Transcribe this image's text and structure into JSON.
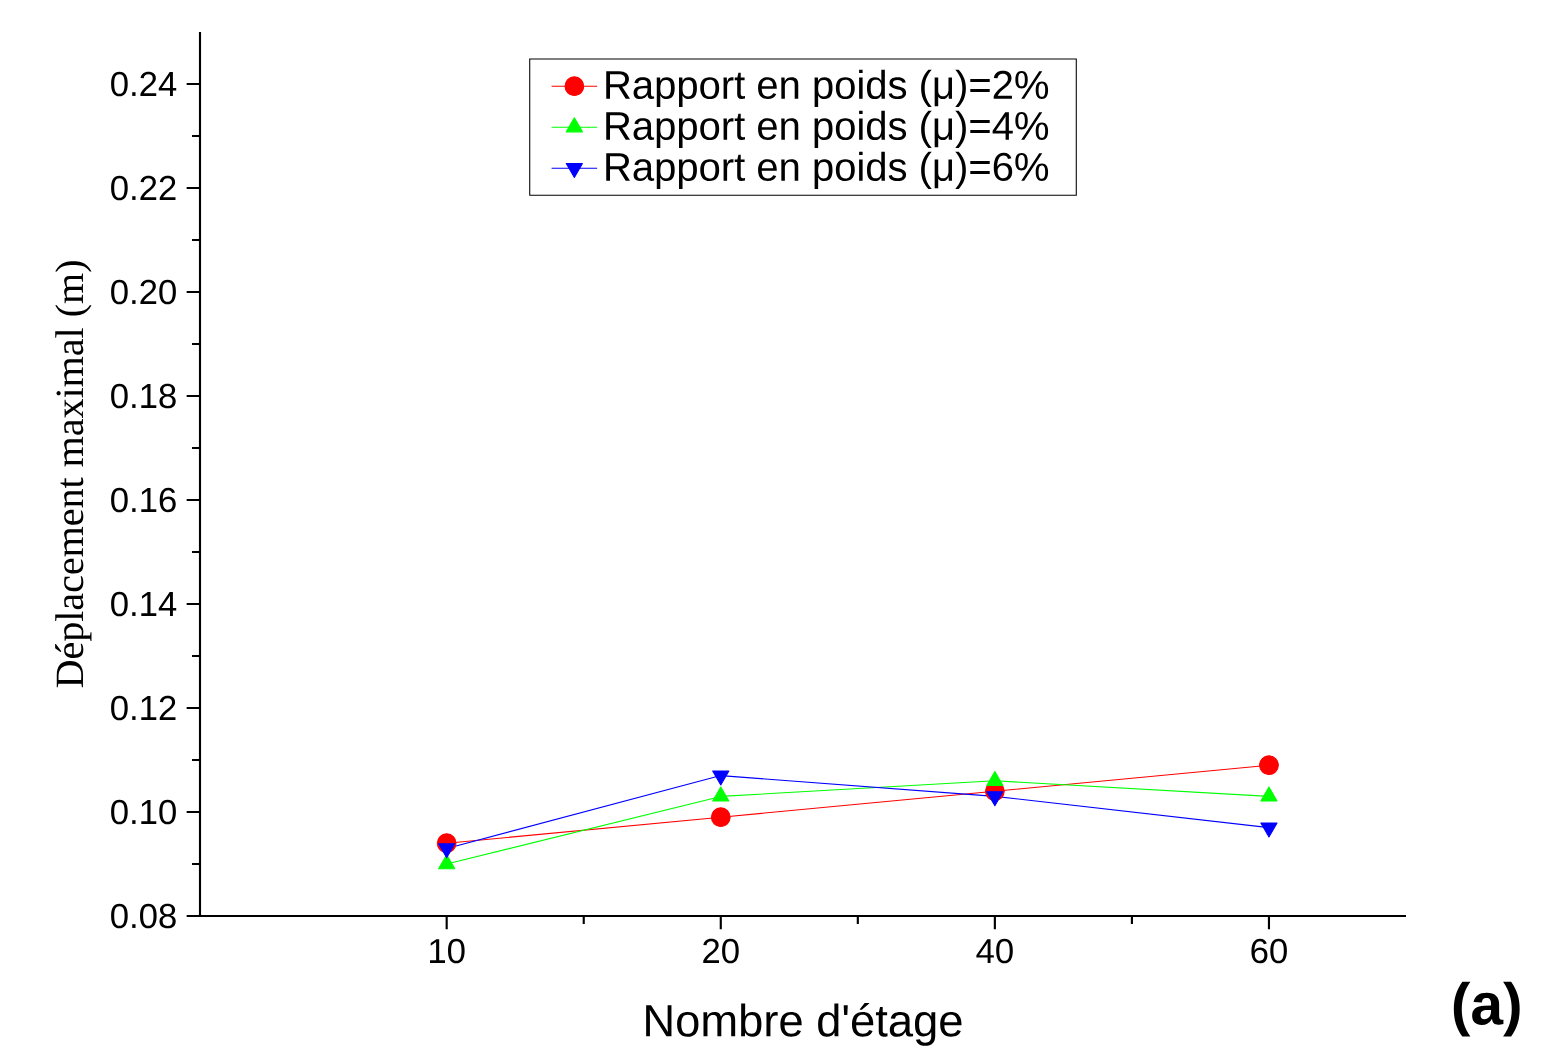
{
  "chart_data": {
    "type": "line",
    "xlabel": "Nombre d'étage",
    "ylabel": "Déplacement maximal (m)",
    "categories": [
      "10",
      "20",
      "40",
      "60"
    ],
    "series": [
      {
        "name": "Rapport en poids (μ)=2%",
        "color": "#ff0000",
        "marker": "circle",
        "values": [
          0.094,
          0.099,
          0.104,
          0.109
        ]
      },
      {
        "name": "Rapport en poids (μ)=4%",
        "color": "#00ff00",
        "marker": "triangle",
        "values": [
          0.09,
          0.103,
          0.106,
          0.103
        ]
      },
      {
        "name": "Rapport en poids (μ)=6%",
        "color": "#0000ff",
        "marker": "triangle-down",
        "values": [
          0.093,
          0.107,
          0.103,
          0.097
        ]
      }
    ],
    "ylim": [
      0.08,
      0.25
    ],
    "yticks": [
      0.08,
      {
        "value": 0.1,
        "label": "0.10"
      },
      0.12,
      0.14,
      0.16,
      0.18,
      {
        "value": 0.2,
        "label": "0.20"
      },
      0.22,
      0.24
    ],
    "grid": false,
    "legend": "top",
    "line_style": "solid",
    "annotations": [
      "(a)"
    ]
  }
}
